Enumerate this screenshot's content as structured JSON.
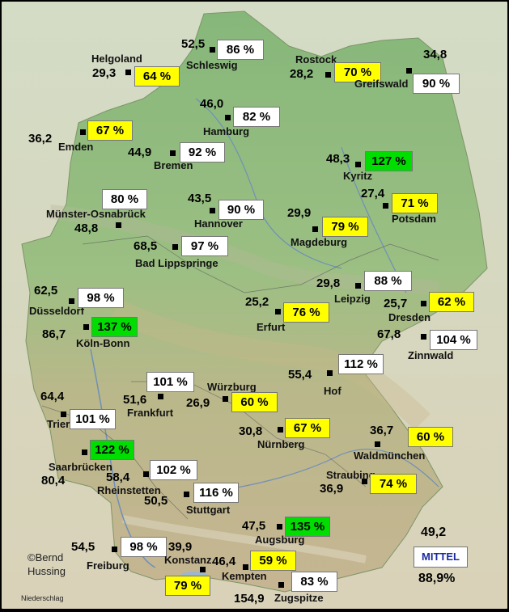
{
  "credit": {
    "line1": "©Bernd",
    "line2": "Hussing",
    "tag": "Niederschlag"
  },
  "summary": {
    "label": "MITTEL",
    "value": "49,2",
    "percent": "88,9%"
  },
  "colors": {
    "white": "#ffffff",
    "yellow": "#ffff00",
    "green": "#00dd00"
  },
  "stations": [
    {
      "name": "Schleswig",
      "value": "52,5",
      "percent": "86 %",
      "level": "white"
    },
    {
      "name": "Helgoland",
      "value": "29,3",
      "percent": "64 %",
      "level": "yellow"
    },
    {
      "name": "Rostock",
      "value": "28,2",
      "percent": "70 %",
      "level": "yellow"
    },
    {
      "name": "Greifswald",
      "value": "34,8",
      "percent": "90 %",
      "level": "white"
    },
    {
      "name": "Hamburg",
      "value": "46,0",
      "percent": "82 %",
      "level": "white"
    },
    {
      "name": "Emden",
      "value": "36,2",
      "percent": "67 %",
      "level": "yellow"
    },
    {
      "name": "Bremen",
      "value": "44,9",
      "percent": "92 %",
      "level": "white"
    },
    {
      "name": "Kyritz",
      "value": "48,3",
      "percent": "127 %",
      "level": "green"
    },
    {
      "name": "Potsdam",
      "value": "27,4",
      "percent": "71 %",
      "level": "yellow"
    },
    {
      "name": "Münster-Osnabrück",
      "value": "48,8",
      "percent": "80 %",
      "level": "white"
    },
    {
      "name": "Hannover",
      "value": "43,5",
      "percent": "90 %",
      "level": "white"
    },
    {
      "name": "Magdeburg",
      "value": "29,9",
      "percent": "79 %",
      "level": "yellow"
    },
    {
      "name": "Bad Lippspringe",
      "value": "68,5",
      "percent": "97 %",
      "level": "white"
    },
    {
      "name": "Düsseldorf",
      "value": "62,5",
      "percent": "98 %",
      "level": "white"
    },
    {
      "name": "Leipzig",
      "value": "29,8",
      "percent": "88 %",
      "level": "white"
    },
    {
      "name": "Erfurt",
      "value": "25,2",
      "percent": "76 %",
      "level": "yellow"
    },
    {
      "name": "Dresden",
      "value": "25,7",
      "percent": "62 %",
      "level": "yellow"
    },
    {
      "name": "Köln-Bonn",
      "value": "86,7",
      "percent": "137 %",
      "level": "green"
    },
    {
      "name": "Zinnwald",
      "value": "67,8",
      "percent": "104 %",
      "level": "white"
    },
    {
      "name": "Hof",
      "value": "55,4",
      "percent": "112 %",
      "level": "white"
    },
    {
      "name": "Frankfurt",
      "value": "51,6",
      "percent": "101 %",
      "level": "white"
    },
    {
      "name": "Würzburg",
      "value": "26,9",
      "percent": "60 %",
      "level": "yellow"
    },
    {
      "name": "Trier",
      "value": "64,4",
      "percent": "101 %",
      "level": "white"
    },
    {
      "name": "Nürnberg",
      "value": "30,8",
      "percent": "67 %",
      "level": "yellow"
    },
    {
      "name": "Waldmünchen",
      "value": "36,7",
      "percent": "60 %",
      "level": "yellow"
    },
    {
      "name": "Saarbrücken",
      "value": "80,4",
      "percent": "122 %",
      "level": "green"
    },
    {
      "name": "Rheinstetten",
      "value": "58,4",
      "percent": "102 %",
      "level": "white"
    },
    {
      "name": "Straubing",
      "value": "36,9",
      "percent": "74 %",
      "level": "yellow"
    },
    {
      "name": "Stuttgart",
      "value": "50,5",
      "percent": "116 %",
      "level": "white"
    },
    {
      "name": "Augsburg",
      "value": "47,5",
      "percent": "135 %",
      "level": "green"
    },
    {
      "name": "Freiburg",
      "value": "54,5",
      "percent": "98 %",
      "level": "white"
    },
    {
      "name": "Konstanz",
      "value": "39,9",
      "percent": "79 %",
      "level": "yellow"
    },
    {
      "name": "Kempten",
      "value": "46,4",
      "percent": "59 %",
      "level": "yellow"
    },
    {
      "name": "Zugspitze",
      "value": "154,9",
      "percent": "83 %",
      "level": "white"
    }
  ]
}
